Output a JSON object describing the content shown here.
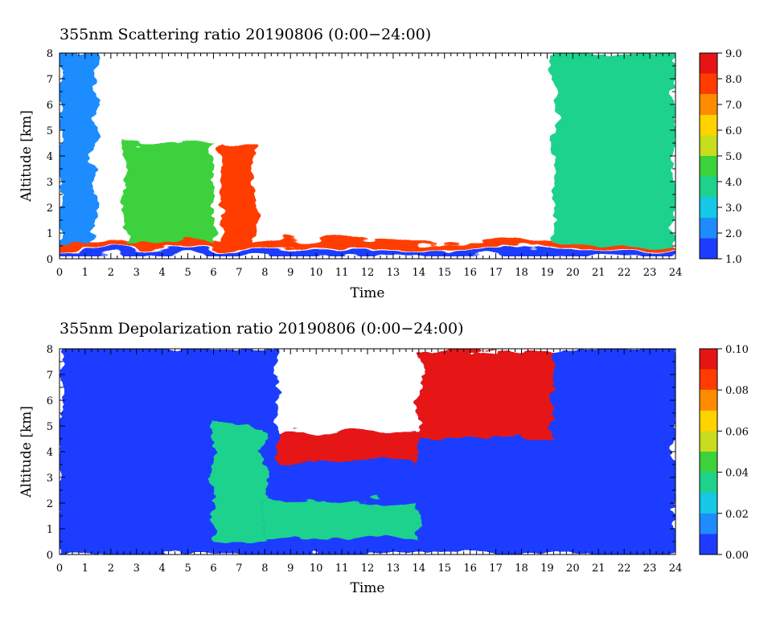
{
  "chart_data": [
    {
      "type": "heatmap",
      "title": "355nm Scattering ratio  20190806 (0:00−24:00)",
      "xlabel": "Time",
      "ylabel": "Altitude [km]",
      "xlim": [
        0,
        24
      ],
      "ylim": [
        0,
        8
      ],
      "xticks": [
        "0",
        "1",
        "2",
        "3",
        "4",
        "5",
        "6",
        "7",
        "8",
        "9",
        "10",
        "11",
        "12",
        "13",
        "14",
        "15",
        "16",
        "17",
        "18",
        "19",
        "20",
        "21",
        "22",
        "23",
        "24"
      ],
      "yticks": [
        "0",
        "1",
        "2",
        "3",
        "4",
        "5",
        "6",
        "7",
        "8"
      ],
      "colorbar": {
        "range": [
          1.0,
          9.0
        ],
        "ticks": [
          "1.0",
          "2.0",
          "3.0",
          "4.0",
          "5.0",
          "6.0",
          "7.0",
          "8.0",
          "9.0"
        ],
        "colors": [
          "#1e3cff",
          "#1e8cff",
          "#14c8e6",
          "#1ed28c",
          "#3cd23c",
          "#c8dc1e",
          "#ffd200",
          "#ff8c00",
          "#ff3c00",
          "#e61414"
        ]
      },
      "grid": false,
      "approx_features": [
        {
          "feature": "high-ratio boundary layer near surface",
          "time": [
            0,
            24
          ],
          "altitude": [
            0.4,
            0.7
          ],
          "value": 8.0
        },
        {
          "feature": "low-ratio band near surface",
          "time": [
            0,
            24
          ],
          "altitude": [
            0.1,
            0.35
          ],
          "value": 1.5
        },
        {
          "feature": "elevated layer",
          "time": [
            2.5,
            6
          ],
          "altitude": [
            0.6,
            4.5
          ],
          "value": 4.5
        },
        {
          "feature": "elevated layer",
          "time": [
            6.3,
            7.6
          ],
          "altitude": [
            0.5,
            4.6
          ],
          "value": 7.5
        },
        {
          "feature": "upper profile column",
          "time": [
            0,
            1.4
          ],
          "altitude": [
            0.6,
            8
          ],
          "value": 2.5
        },
        {
          "feature": "upper profile column",
          "time": [
            19.2,
            24
          ],
          "altitude": [
            0.6,
            8
          ],
          "value": 3.5
        },
        {
          "feature": "no data / saturated",
          "time": [
            1.4,
            19.2
          ],
          "altitude": [
            4.5,
            8
          ],
          "value": null
        }
      ]
    },
    {
      "type": "heatmap",
      "title": "355nm Depolarization ratio  20190806 (0:00−24:00)",
      "xlabel": "Time",
      "ylabel": "Altitude [km]",
      "xlim": [
        0,
        24
      ],
      "ylim": [
        0,
        8
      ],
      "xticks": [
        "0",
        "1",
        "2",
        "3",
        "4",
        "5",
        "6",
        "7",
        "8",
        "9",
        "10",
        "11",
        "12",
        "13",
        "14",
        "15",
        "16",
        "17",
        "18",
        "19",
        "20",
        "21",
        "22",
        "23",
        "24"
      ],
      "yticks": [
        "0",
        "1",
        "2",
        "3",
        "4",
        "5",
        "6",
        "7",
        "8"
      ],
      "colorbar": {
        "range": [
          0.0,
          0.1
        ],
        "ticks": [
          "0.00",
          "0.02",
          "0.04",
          "0.06",
          "0.08",
          "0.10"
        ],
        "colors": [
          "#1e3cff",
          "#1e8cff",
          "#14c8e6",
          "#1ed28c",
          "#3cd23c",
          "#c8dc1e",
          "#ffd200",
          "#ff8c00",
          "#ff3c00",
          "#e61414"
        ]
      },
      "grid": false,
      "approx_features": [
        {
          "feature": "background",
          "time": [
            0,
            24
          ],
          "altitude": [
            0,
            8
          ],
          "value": 0.01
        },
        {
          "feature": "low-depolarization band",
          "time": [
            8.5,
            14
          ],
          "altitude": [
            2.5,
            3.6
          ],
          "value": 0.0
        },
        {
          "feature": "high-depolarization cloud top",
          "time": [
            8.5,
            14
          ],
          "altitude": [
            3.6,
            4.8
          ],
          "value": 0.09
        },
        {
          "feature": "high-depolarization upper layer",
          "time": [
            14,
            19.2
          ],
          "altitude": [
            4.5,
            8
          ],
          "value": 0.09
        },
        {
          "feature": "aerosol layer",
          "time": [
            6,
            8
          ],
          "altitude": [
            0.5,
            5
          ],
          "value": 0.03
        },
        {
          "feature": "low-altitude layer",
          "time": [
            8,
            14
          ],
          "altitude": [
            0.6,
            2.1
          ],
          "value": 0.04
        },
        {
          "feature": "no data / saturated",
          "time": [
            8.5,
            14
          ],
          "altitude": [
            4.8,
            8
          ],
          "value": null
        }
      ]
    }
  ]
}
